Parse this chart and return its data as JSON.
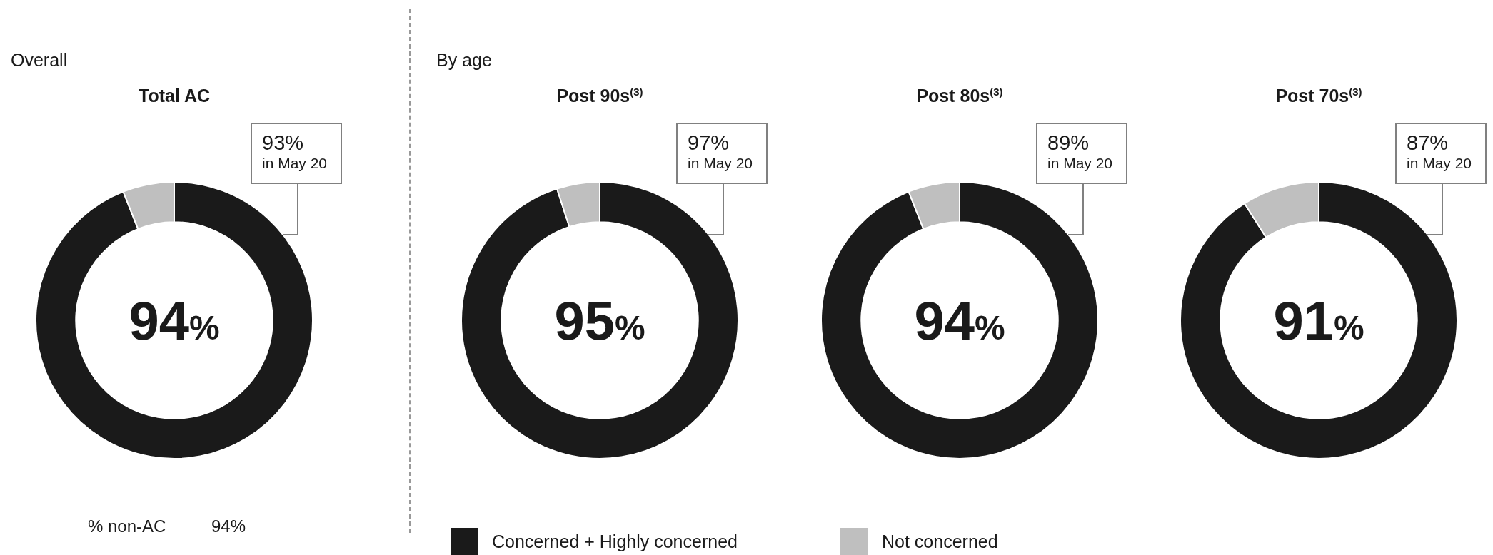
{
  "chart_data": [
    {
      "type": "donut",
      "subtitle": "Overall",
      "title": "Total AC",
      "values": [
        94,
        6
      ],
      "colors": [
        "#1a1a1a",
        "#bfbfbf"
      ],
      "annotations": [
        "94%",
        "93%",
        "in May 20",
        "% non-AC",
        "94%"
      ],
      "legend": false
    },
    {
      "type": "donut",
      "subtitle": "By age",
      "title": "Post 90s$^{(3)}$",
      "categories": [
        "Concerned + Highly concerned",
        "Not concerned"
      ],
      "values": [
        95,
        5
      ],
      "colors": [
        "#1a1a1a",
        "#bfbfbf"
      ],
      "annotations": [
        "95%",
        "97%",
        "in May 20"
      ],
      "legend": "bottom"
    },
    {
      "type": "donut",
      "title": "Post 80s$^{(3)}$",
      "values": [
        94,
        6
      ],
      "colors": [
        "#1a1a1a",
        "#bfbfbf"
      ],
      "annotations": [
        "94%",
        "89%",
        "in May 20"
      ],
      "legend": false
    },
    {
      "type": "donut",
      "title": "Post 70s$^{(3)}$",
      "values": [
        91,
        9
      ],
      "colors": [
        "#1a1a1a",
        "#bfbfbf"
      ],
      "annotations": [
        "91%",
        "87%",
        "in May 20"
      ],
      "legend": false
    }
  ]
}
